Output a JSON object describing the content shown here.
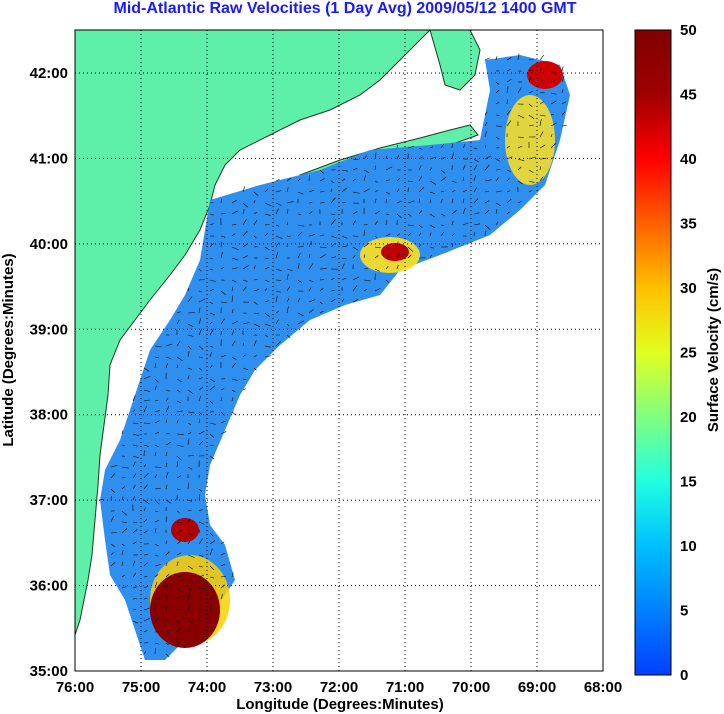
{
  "title": "Mid-Atlantic Raw Velocities (1 Day Avg) 2009/05/12 1400 GMT",
  "map": {
    "xlabel": "Longitude (Degrees:Minutes)",
    "ylabel": "Latitude (Degrees:Minutes)",
    "x_ticks": [
      "76:00",
      "75:00",
      "74:00",
      "73:00",
      "72:00",
      "71:00",
      "70:00",
      "69:00",
      "68:00"
    ],
    "y_ticks": [
      "42:00",
      "41:00",
      "40:00",
      "39:00",
      "38:00",
      "37:00",
      "36:00",
      "35:00"
    ],
    "land_color": "#5ef0a8",
    "grid": "dotted"
  },
  "colorbar": {
    "label": "Surface Velocity (cm/s)",
    "ticks": [
      "50",
      "45",
      "40",
      "35",
      "30",
      "25",
      "20",
      "15",
      "10",
      "5",
      "0"
    ],
    "range": [
      0,
      50
    ],
    "colormap": [
      "#0040ff",
      "#0080ff",
      "#00c0ff",
      "#20ffe0",
      "#80ff80",
      "#e0ff20",
      "#ffc000",
      "#ff6000",
      "#ff0000",
      "#a00000",
      "#800000"
    ]
  }
}
